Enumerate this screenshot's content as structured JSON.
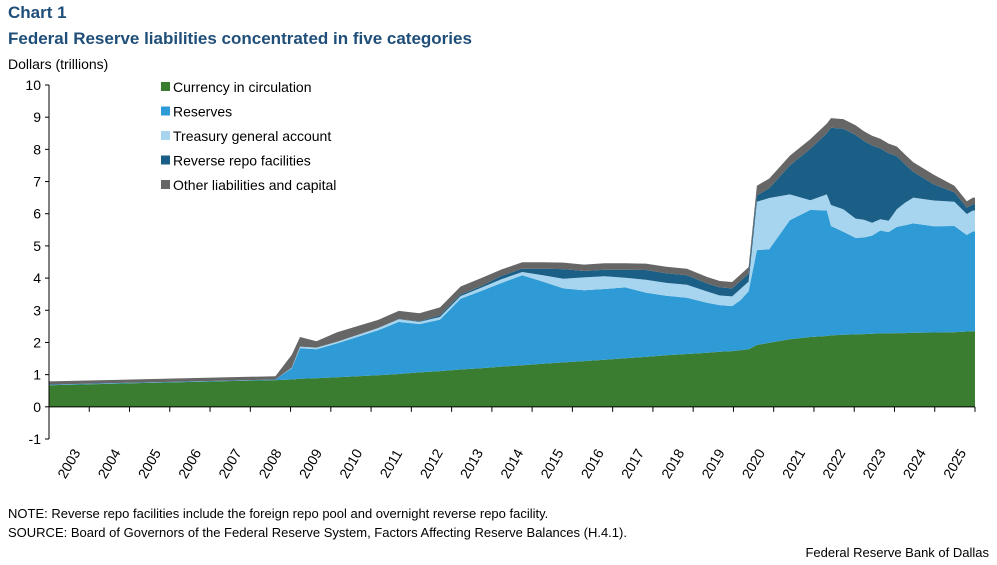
{
  "header": {
    "chart_label": "Chart 1",
    "title": "Federal Reserve liabilities concentrated in five categories",
    "y_unit": "Dollars (trillions)"
  },
  "footer": {
    "note": "NOTE: Reverse repo facilities include the foreign repo pool and overnight reverse repo facility.",
    "source": "SOURCE: Board of Governors of the Federal Reserve System, Factors Affecting Reserve Balances (H.4.1).",
    "credit": "Federal Reserve Bank of Dallas"
  },
  "chart_data": {
    "type": "area",
    "stacked": true,
    "ylim": [
      -1,
      10
    ],
    "yticks": [
      "-1",
      "0",
      "1",
      "2",
      "3",
      "4",
      "5",
      "6",
      "7",
      "8",
      "9",
      "10"
    ],
    "x_tick_labels": [
      "2003",
      "2004",
      "2005",
      "2006",
      "2007",
      "2008",
      "2009",
      "2010",
      "2011",
      "2012",
      "2013",
      "2014",
      "2015",
      "2016",
      "2017",
      "2018",
      "2019",
      "2020",
      "2021",
      "2022",
      "2023",
      "2024",
      "2025"
    ],
    "legend_position": "top-left",
    "x": [
      2003.0,
      2005.0,
      2008.5,
      2008.9,
      2009.1,
      2009.5,
      2010.0,
      2011.0,
      2011.5,
      2012.0,
      2012.5,
      2013.0,
      2013.5,
      2014.0,
      2014.5,
      2015.0,
      2015.5,
      2016.0,
      2016.5,
      2017.0,
      2017.5,
      2018.0,
      2018.5,
      2019.0,
      2019.3,
      2019.6,
      2019.8,
      2020.0,
      2020.2,
      2020.5,
      2021.0,
      2021.5,
      2021.9,
      2022.0,
      2022.3,
      2022.6,
      2022.8,
      2023.0,
      2023.2,
      2023.4,
      2023.6,
      2023.8,
      2024.0,
      2024.5,
      2025.0,
      2025.3,
      2025.45,
      2025.5
    ],
    "series": [
      {
        "name": "Currency in circulation",
        "color": "#3b7d30",
        "values": [
          0.67,
          0.73,
          0.83,
          0.85,
          0.87,
          0.89,
          0.92,
          0.98,
          1.02,
          1.07,
          1.11,
          1.16,
          1.2,
          1.25,
          1.29,
          1.34,
          1.38,
          1.42,
          1.46,
          1.51,
          1.55,
          1.6,
          1.64,
          1.68,
          1.71,
          1.73,
          1.76,
          1.79,
          1.92,
          1.99,
          2.1,
          2.17,
          2.2,
          2.22,
          2.24,
          2.25,
          2.26,
          2.27,
          2.28,
          2.28,
          2.29,
          2.29,
          2.3,
          2.31,
          2.32,
          2.34,
          2.35,
          2.35
        ]
      },
      {
        "name": "Reserves",
        "color": "#2e9bd6",
        "values": [
          0.02,
          0.02,
          0.02,
          0.35,
          0.95,
          0.9,
          1.05,
          1.4,
          1.62,
          1.5,
          1.6,
          2.2,
          2.4,
          2.6,
          2.8,
          2.55,
          2.3,
          2.2,
          2.2,
          2.2,
          2.0,
          1.85,
          1.75,
          1.55,
          1.45,
          1.4,
          1.55,
          1.8,
          2.95,
          2.9,
          3.7,
          3.95,
          3.9,
          3.4,
          3.2,
          3.0,
          3.0,
          3.05,
          3.2,
          3.15,
          3.3,
          3.35,
          3.4,
          3.3,
          3.3,
          3.0,
          3.1,
          3.1
        ]
      },
      {
        "name": "Treasury general account",
        "color": "#a7d4ee",
        "values": [
          0.0,
          0.0,
          0.0,
          0.02,
          0.05,
          0.05,
          0.05,
          0.07,
          0.08,
          0.07,
          0.08,
          0.08,
          0.1,
          0.12,
          0.1,
          0.2,
          0.3,
          0.4,
          0.4,
          0.3,
          0.4,
          0.4,
          0.4,
          0.35,
          0.3,
          0.3,
          0.35,
          0.3,
          1.5,
          1.6,
          0.8,
          0.3,
          0.5,
          0.65,
          0.7,
          0.6,
          0.55,
          0.4,
          0.35,
          0.35,
          0.55,
          0.7,
          0.8,
          0.8,
          0.75,
          0.65,
          0.65,
          0.65
        ]
      },
      {
        "name": "Reverse repo facilities",
        "color": "#1c5f86",
        "values": [
          0.0,
          0.0,
          0.0,
          0.0,
          0.0,
          0.0,
          0.0,
          0.0,
          0.01,
          0.02,
          0.05,
          0.05,
          0.05,
          0.1,
          0.1,
          0.2,
          0.3,
          0.2,
          0.2,
          0.25,
          0.3,
          0.3,
          0.3,
          0.25,
          0.25,
          0.25,
          0.25,
          0.25,
          0.2,
          0.3,
          0.9,
          1.6,
          1.9,
          2.4,
          2.5,
          2.6,
          2.45,
          2.4,
          2.2,
          2.1,
          1.65,
          1.2,
          0.8,
          0.5,
          0.3,
          0.2,
          0.2,
          0.2
        ]
      },
      {
        "name": "Other liabilities and capital",
        "color": "#666666",
        "values": [
          0.1,
          0.1,
          0.1,
          0.4,
          0.3,
          0.2,
          0.3,
          0.25,
          0.25,
          0.25,
          0.25,
          0.25,
          0.25,
          0.2,
          0.2,
          0.2,
          0.2,
          0.2,
          0.2,
          0.2,
          0.2,
          0.2,
          0.2,
          0.2,
          0.2,
          0.2,
          0.2,
          0.2,
          0.3,
          0.3,
          0.3,
          0.3,
          0.3,
          0.3,
          0.3,
          0.3,
          0.3,
          0.3,
          0.3,
          0.3,
          0.3,
          0.3,
          0.3,
          0.3,
          0.2,
          0.2,
          0.2,
          0.2
        ]
      }
    ]
  }
}
